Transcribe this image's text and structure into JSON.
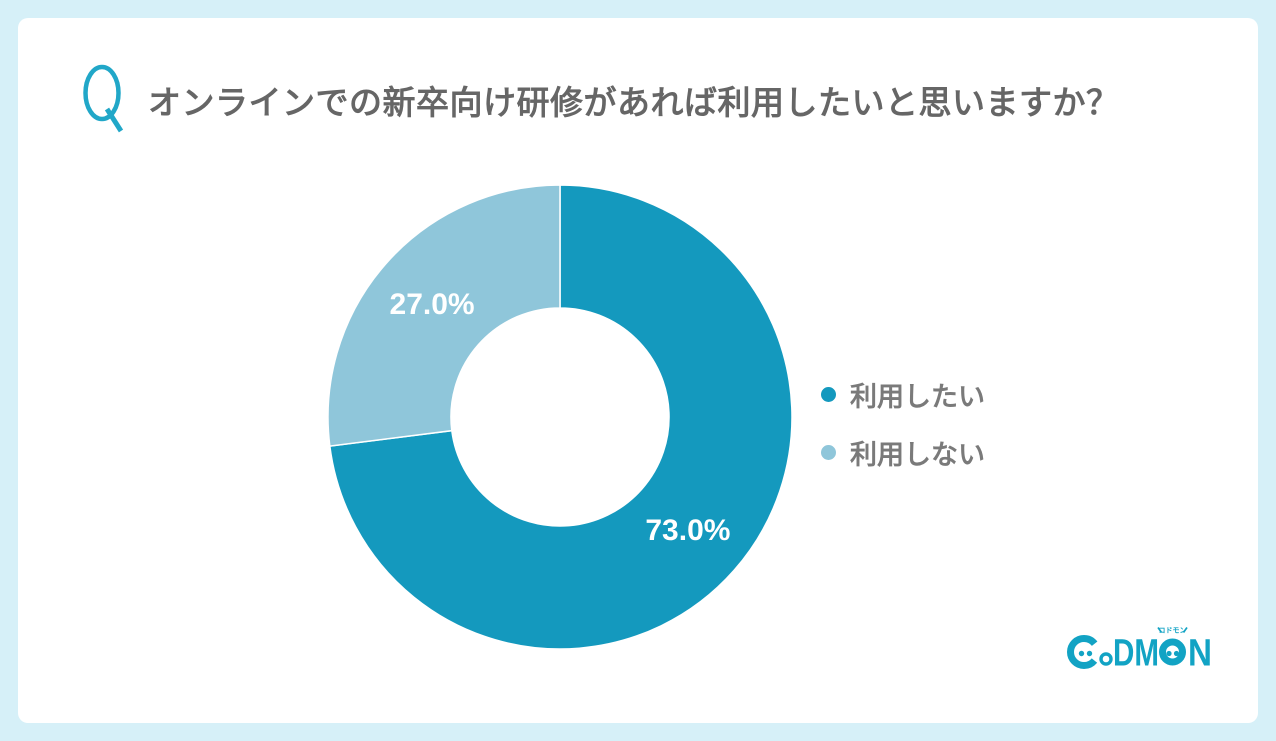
{
  "page": {
    "background_color": "#D6F0F8",
    "card_color": "#FFFFFF"
  },
  "header": {
    "q_mark": "Q",
    "q_color": "#21A7C8",
    "title": "オンラインでの新卒向け研修があれば利用したいと思いますか？",
    "title_color": "#666666"
  },
  "chart_data": {
    "type": "pie",
    "subtype": "donut",
    "title": "オンラインでの新卒向け研修があれば利用したいと思いますか？",
    "categories": [
      "利用したい",
      "利用しない"
    ],
    "values": [
      73.0,
      27.0
    ],
    "series": [
      {
        "name": "利用したい",
        "value": 73.0,
        "label": "73.0%",
        "color": "#1499BE"
      },
      {
        "name": "利用しない",
        "value": 27.0,
        "label": "27.0%",
        "color": "#8FC6DA"
      }
    ],
    "unit": "%",
    "start_angle": "top",
    "direction": "clockwise",
    "inner_radius_ratio": 0.47,
    "slice_label_color": "#FFFFFF",
    "slice_separator_color": "#FFFFFF",
    "legend_position": "right",
    "legend_text_color": "#7A7A7A"
  },
  "footer": {
    "logo_text": "CoDMON",
    "logo_ruby": "コドモン",
    "logo_color": "#12A3C4"
  }
}
